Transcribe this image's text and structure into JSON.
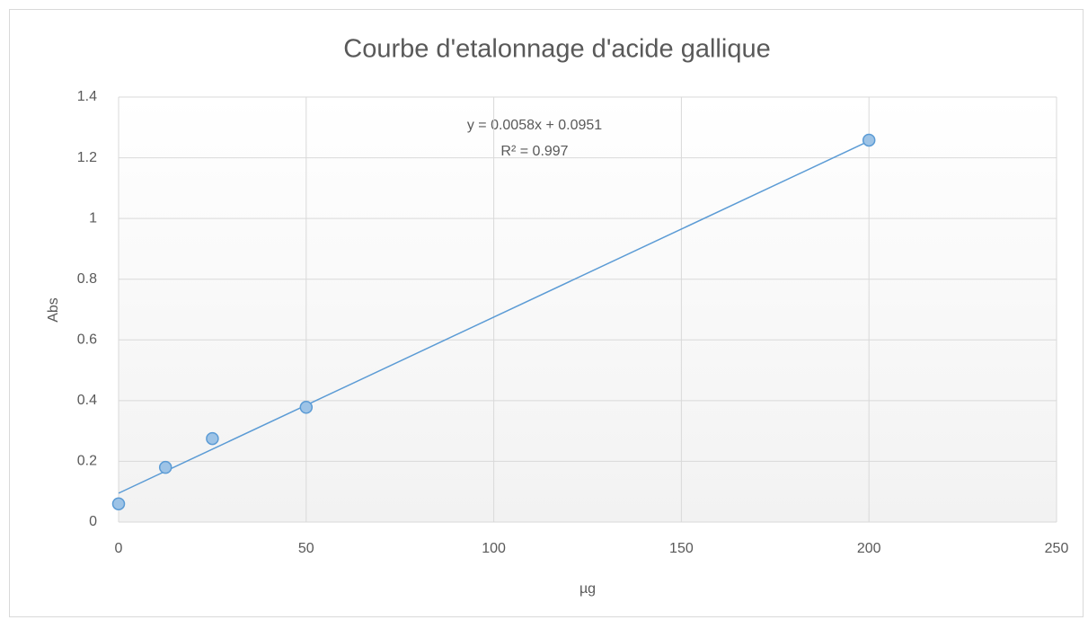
{
  "chart_data": {
    "type": "scatter",
    "title": "Courbe d'etalonnage d'acide gallique",
    "xlabel": "µg",
    "ylabel": "Abs",
    "series": [
      {
        "name": "Abs",
        "color": "#5b9bd5",
        "x": [
          0,
          12.5,
          25,
          50,
          200
        ],
        "values": [
          0.06,
          0.18,
          0.275,
          0.378,
          1.258
        ]
      }
    ],
    "trendline": {
      "slope": 0.0058,
      "intercept": 0.0951,
      "color": "#5b9bd5"
    },
    "annotations": [
      "y = 0.0058x + 0.0951",
      "R² = 0.997"
    ],
    "xlim": [
      0,
      250
    ],
    "xticks": [
      0,
      50,
      100,
      150,
      200,
      250
    ],
    "ylim": [
      0,
      1.4
    ],
    "yticks": [
      0,
      0.2,
      0.4,
      0.6,
      0.8,
      1,
      1.2,
      1.4
    ],
    "grid": true
  }
}
